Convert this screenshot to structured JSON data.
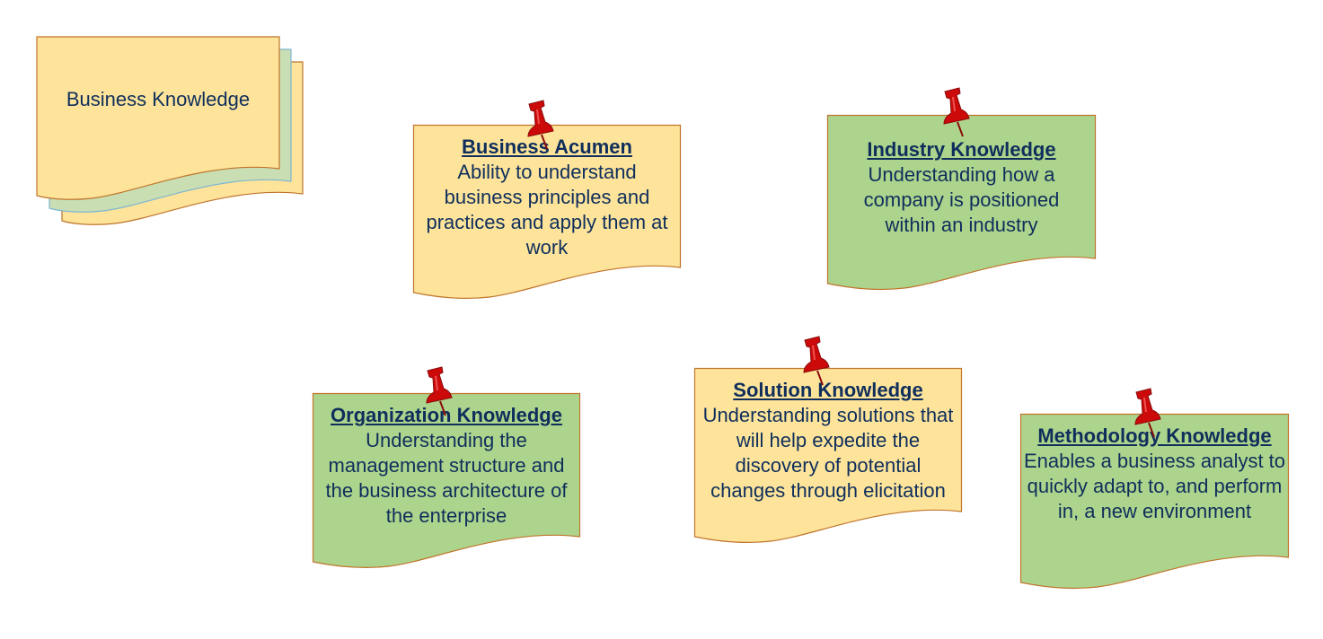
{
  "stack": {
    "label": "Business Knowledge"
  },
  "colors": {
    "yellow_fill": "#fde49a",
    "green_fill": "#add48c",
    "border": "#c0752c",
    "stack_middle_fill": "#c9dfb3",
    "stack_middle_border": "#7fb5d0",
    "text": "#0f2e5c",
    "pin": "#cc0a0a"
  },
  "notes": [
    {
      "id": "business-acumen",
      "title": "Business Acumen",
      "body": "Ability to understand business principles and practices and apply them at work",
      "color": "yellow"
    },
    {
      "id": "industry-knowledge",
      "title": "Industry Knowledge",
      "body": "Understanding how a company is positioned within an industry",
      "color": "green"
    },
    {
      "id": "organization-knowledge",
      "title": "Organization Knowledge",
      "body": "Understanding the management structure and the business architecture of the enterprise",
      "color": "green"
    },
    {
      "id": "solution-knowledge",
      "title": "Solution Knowledge",
      "body": "Understanding solutions that will help expedite the discovery of potential changes through elicitation",
      "color": "yellow"
    },
    {
      "id": "methodology-knowledge",
      "title": "Methodology Knowledge",
      "body": "Enables a business analyst to quickly adapt to, and perform in, a new environment",
      "color": "green"
    }
  ]
}
